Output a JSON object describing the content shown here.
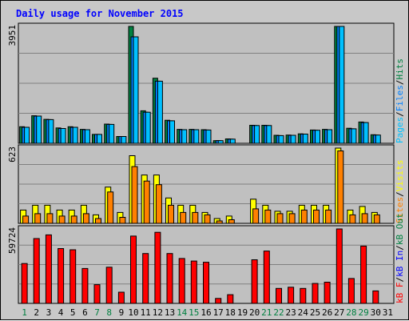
{
  "chart_data": [
    {
      "type": "bar",
      "title": "Daily usage for November 2015",
      "panel": "top",
      "ymax_label": "3951",
      "series": [
        {
          "name": "Hits",
          "color": "#008040",
          "values": [
            560,
            930,
            810,
            520,
            560,
            470,
            300,
            650,
            230,
            3951,
            1100,
            2200,
            780,
            470,
            470,
            460,
            90,
            150,
            0,
            610,
            610,
            270,
            280,
            320,
            450,
            470,
            3951,
            510,
            720,
            290
          ]
        },
        {
          "name": "Files",
          "color": "#0080ff",
          "values": [
            540,
            920,
            800,
            500,
            540,
            460,
            300,
            640,
            230,
            3600,
            1050,
            2100,
            760,
            460,
            460,
            450,
            90,
            140,
            0,
            600,
            600,
            260,
            270,
            310,
            440,
            460,
            3951,
            490,
            700,
            280
          ]
        },
        {
          "name": "Pages",
          "color": "#00c0ff",
          "values": [
            540,
            920,
            800,
            500,
            540,
            460,
            300,
            640,
            230,
            3600,
            1050,
            2100,
            760,
            460,
            460,
            450,
            90,
            140,
            0,
            600,
            600,
            260,
            270,
            310,
            440,
            460,
            3951,
            490,
            700,
            280
          ]
        }
      ],
      "side_labels": [
        "Pages",
        "/",
        "Files",
        "/",
        "Hits"
      ]
    },
    {
      "type": "bar",
      "panel": "middle",
      "ymax_label": "623",
      "series": [
        {
          "name": "Visits",
          "color": "#ffff00",
          "values": [
            110,
            150,
            150,
            110,
            110,
            150,
            70,
            300,
            90,
            560,
            400,
            400,
            210,
            150,
            150,
            90,
            40,
            60,
            0,
            200,
            150,
            100,
            100,
            150,
            150,
            150,
            623,
            110,
            140,
            90
          ]
        },
        {
          "name": "Sites",
          "color": "#ff8000",
          "values": [
            60,
            80,
            80,
            60,
            60,
            80,
            40,
            260,
            50,
            470,
            350,
            320,
            150,
            90,
            90,
            70,
            20,
            30,
            0,
            120,
            110,
            80,
            80,
            110,
            110,
            110,
            600,
            70,
            80,
            70
          ]
        }
      ],
      "side_labels": [
        "Sites",
        "/",
        "Visits"
      ]
    },
    {
      "type": "bar",
      "panel": "bottom",
      "ymax_label": "59724",
      "series": [
        {
          "name": "kB F",
          "color": "#ff0000",
          "values": [
            32000,
            52000,
            55000,
            44000,
            43000,
            28000,
            15000,
            29000,
            9000,
            54000,
            40000,
            57000,
            40000,
            36000,
            34000,
            33000,
            4000,
            7000,
            0,
            35000,
            42000,
            12000,
            13000,
            12000,
            16000,
            17000,
            59724,
            20000,
            46000,
            10000
          ]
        }
      ],
      "side_labels": [
        "kB F",
        "/",
        "kB In",
        "/",
        "kB Out"
      ]
    }
  ],
  "x_labels": [
    "1",
    "2",
    "3",
    "4",
    "5",
    "6",
    "7",
    "8",
    "9",
    "10",
    "11",
    "12",
    "13",
    "14",
    "15",
    "16",
    "17",
    "18",
    "19",
    "20",
    "21",
    "22",
    "23",
    "24",
    "25",
    "26",
    "27",
    "28",
    "29",
    "30",
    "31"
  ],
  "weekend_days": [
    1,
    7,
    8,
    14,
    15,
    21,
    22,
    28,
    29
  ],
  "colors": {
    "title": "#0000ff",
    "frame": "#c8c8c8",
    "panel": "#c0c0c0",
    "weekday_label": "#000000",
    "weekend_label": "#008040",
    "kb_in": "#0000ff",
    "kb_out": "#008040"
  }
}
